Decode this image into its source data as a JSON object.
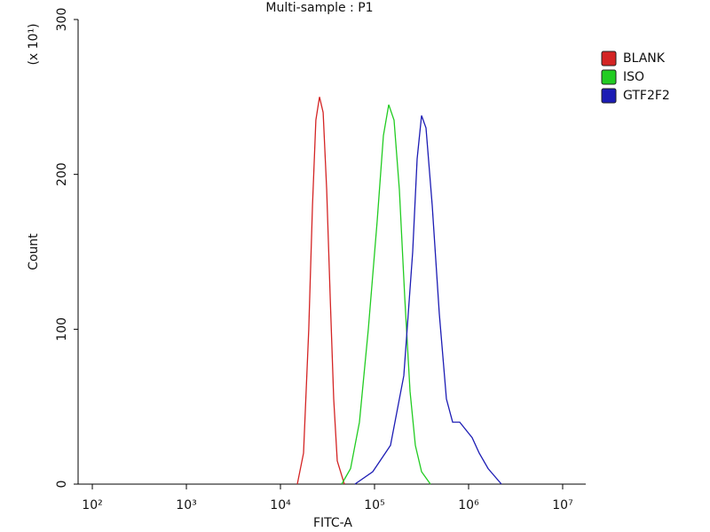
{
  "chart_data": {
    "type": "line",
    "title": "Multi-sample : P1",
    "x_label": "FITC-A",
    "y_label": "Count",
    "y_multiplier": "(x 10¹)",
    "xscale": "log",
    "xlim": [
      70.6,
      17600000
    ],
    "ylim": [
      0,
      300
    ],
    "xticks": [
      {
        "value": 100,
        "label": "10²"
      },
      {
        "value": 1000,
        "label": "10³"
      },
      {
        "value": 10000,
        "label": "10⁴"
      },
      {
        "value": 100000,
        "label": "10⁵"
      },
      {
        "value": 1000000,
        "label": "10⁶"
      },
      {
        "value": 10000000,
        "label": "10⁷"
      }
    ],
    "yticks": [
      0,
      100,
      200,
      300
    ],
    "legend": "right",
    "series": [
      {
        "name": "BLANK",
        "color": "#d42424",
        "x": [
          15100,
          17600,
          20000,
          21900,
          23800,
          26000,
          28400,
          31000,
          33800,
          36800,
          40200,
          47800
        ],
        "values": [
          0,
          20,
          100,
          180,
          235,
          250,
          240,
          190,
          120,
          55,
          15,
          0
        ]
      },
      {
        "name": "ISO",
        "color": "#22cc22",
        "x": [
          44800,
          55600,
          69200,
          85900,
          106700,
          124200,
          141500,
          161300,
          183700,
          209600,
          238300,
          271600,
          316200,
          392700
        ],
        "values": [
          0,
          10,
          40,
          100,
          170,
          225,
          245,
          235,
          190,
          120,
          60,
          25,
          8,
          0
        ]
      },
      {
        "name": "GTF2F2",
        "color": "#1c1cb4",
        "x": [
          61900,
          95700,
          147800,
          204800,
          254500,
          283600,
          316200,
          352400,
          410300,
          488800,
          580900,
          676100,
          805200,
          937600,
          1091000,
          1298000,
          1614000,
          2235000
        ],
        "values": [
          0,
          8,
          25,
          70,
          150,
          210,
          238,
          230,
          180,
          110,
          55,
          40,
          40,
          35,
          30,
          20,
          10,
          0
        ]
      }
    ]
  }
}
